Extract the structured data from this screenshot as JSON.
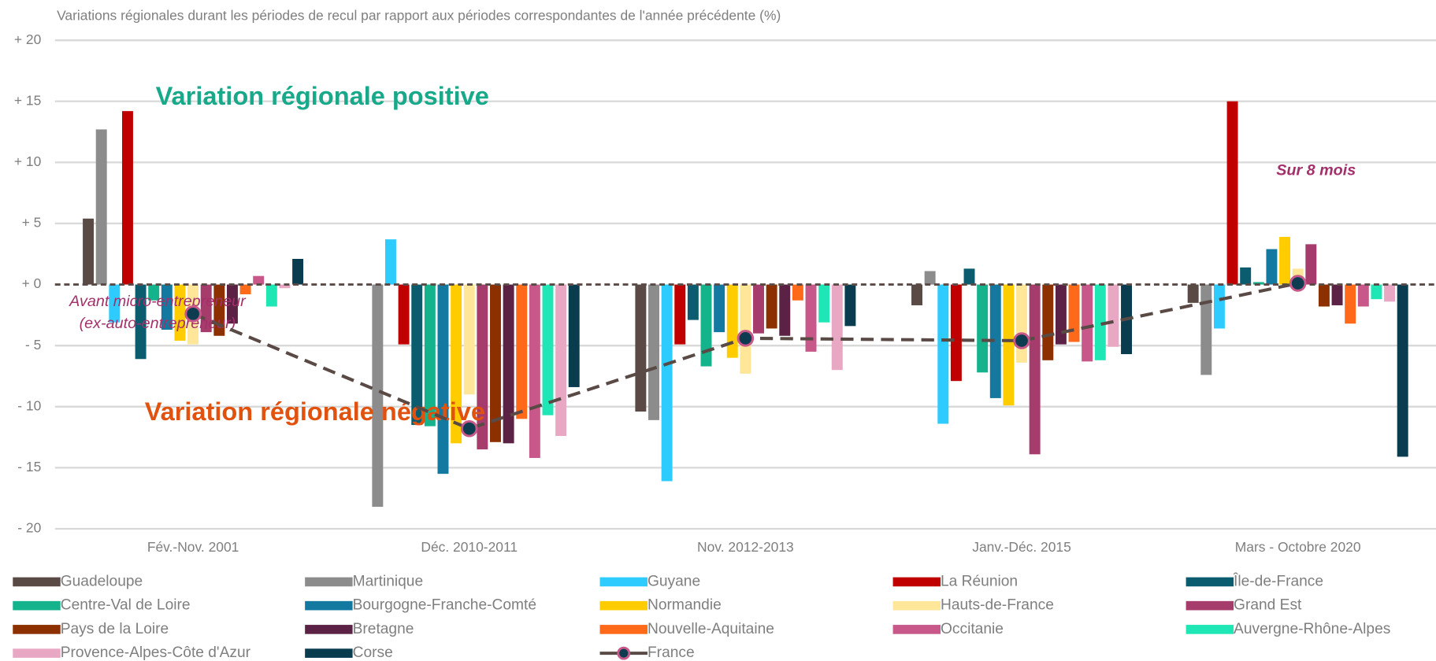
{
  "chart_data": {
    "type": "bar",
    "title": "Variations régionales durant les périodes de recul par rapport aux périodes correspondantes de l'année précédente (%)",
    "categories": [
      "Fév.-Nov. 2001",
      "Déc. 2010-2011",
      "Nov. 2012-2013",
      "Janv.-Déc. 2015",
      "Mars - Octobre 2020"
    ],
    "ylim": [
      -20,
      20
    ],
    "yticks": [
      {
        "value": 20,
        "label": "+ 20"
      },
      {
        "value": 15,
        "label": "+ 15"
      },
      {
        "value": 10,
        "label": "+ 10"
      },
      {
        "value": 5,
        "label": "+ 5"
      },
      {
        "value": 0,
        "label": "+ 0"
      },
      {
        "value": -5,
        "label": "- 5"
      },
      {
        "value": -10,
        "label": "- 10"
      },
      {
        "value": -15,
        "label": "- 15"
      },
      {
        "value": -20,
        "label": "- 20"
      }
    ],
    "grid": true,
    "series": [
      {
        "name": "Guadeloupe",
        "color": "#5a4a45",
        "values": [
          5.4,
          null,
          -10.4,
          -1.7,
          -1.5
        ]
      },
      {
        "name": "Martinique",
        "color": "#8c8c8c",
        "values": [
          12.7,
          -18.2,
          -11.1,
          1.1,
          -7.4
        ]
      },
      {
        "name": "Guyane",
        "color": "#2ecbff",
        "values": [
          -3.1,
          3.7,
          -16.1,
          -11.4,
          -3.6
        ]
      },
      {
        "name": "La Réunion",
        "color": "#c00000",
        "values": [
          14.2,
          -4.9,
          -4.9,
          -7.9,
          15.0
        ]
      },
      {
        "name": "Île-de-France",
        "color": "#0b5c6e",
        "values": [
          -6.1,
          -11.5,
          -2.9,
          1.3,
          1.4
        ]
      },
      {
        "name": "Centre-Val de Loire",
        "color": "#14b38c",
        "values": [
          -1.3,
          -11.6,
          -6.7,
          -7.2,
          0.2
        ]
      },
      {
        "name": "Bourgogne-Franche-Comté",
        "color": "#1479a0",
        "values": [
          -3.7,
          -15.5,
          -3.9,
          -9.3,
          2.9
        ]
      },
      {
        "name": "Normandie",
        "color": "#ffcc00",
        "values": [
          -4.6,
          -13.0,
          -6.0,
          -9.9,
          3.9
        ]
      },
      {
        "name": "Hauts-de-France",
        "color": "#ffe699",
        "values": [
          -4.9,
          -9.0,
          -7.3,
          -6.4,
          1.3
        ]
      },
      {
        "name": "Grand Est",
        "color": "#a63c6b",
        "values": [
          -3.9,
          -13.5,
          -4.0,
          -13.9,
          3.3
        ]
      },
      {
        "name": "Pays de la Loire",
        "color": "#8c3000",
        "values": [
          -4.2,
          -12.9,
          -3.6,
          -6.2,
          -1.8
        ]
      },
      {
        "name": "Bretagne",
        "color": "#5c2245",
        "values": [
          -3.2,
          -13.0,
          -4.2,
          -4.9,
          -1.7
        ]
      },
      {
        "name": "Nouvelle-Aquitaine",
        "color": "#ff6a1a",
        "values": [
          -0.8,
          -11.0,
          -1.3,
          -4.7,
          -3.2
        ]
      },
      {
        "name": "Occitanie",
        "color": "#c8588a",
        "values": [
          0.7,
          -14.2,
          -5.5,
          -6.3,
          -1.8
        ]
      },
      {
        "name": "Auvergne-Rhône-Alpes",
        "color": "#1ee6b4",
        "values": [
          -1.8,
          -10.7,
          -3.1,
          -6.2,
          -1.2
        ]
      },
      {
        "name": "Provence-Alpes-Côte d'Azur",
        "color": "#e8a8c4",
        "values": [
          -0.3,
          -12.4,
          -7.0,
          -5.1,
          -1.4
        ]
      },
      {
        "name": "Corse",
        "color": "#0a3c50",
        "values": [
          2.1,
          -8.4,
          -3.4,
          -5.7,
          -14.1
        ]
      },
      {
        "name": "France",
        "color": "#5a4a45",
        "type": "line",
        "values": [
          -2.4,
          -11.8,
          -4.4,
          -4.6,
          0.1
        ]
      }
    ],
    "annotations": [
      "Variation régionale positive",
      "Variation régionale négative",
      "Avant micro-entrepreneur",
      "(ex-auto-entrepreneur)",
      "Sur 8 mois"
    ]
  }
}
